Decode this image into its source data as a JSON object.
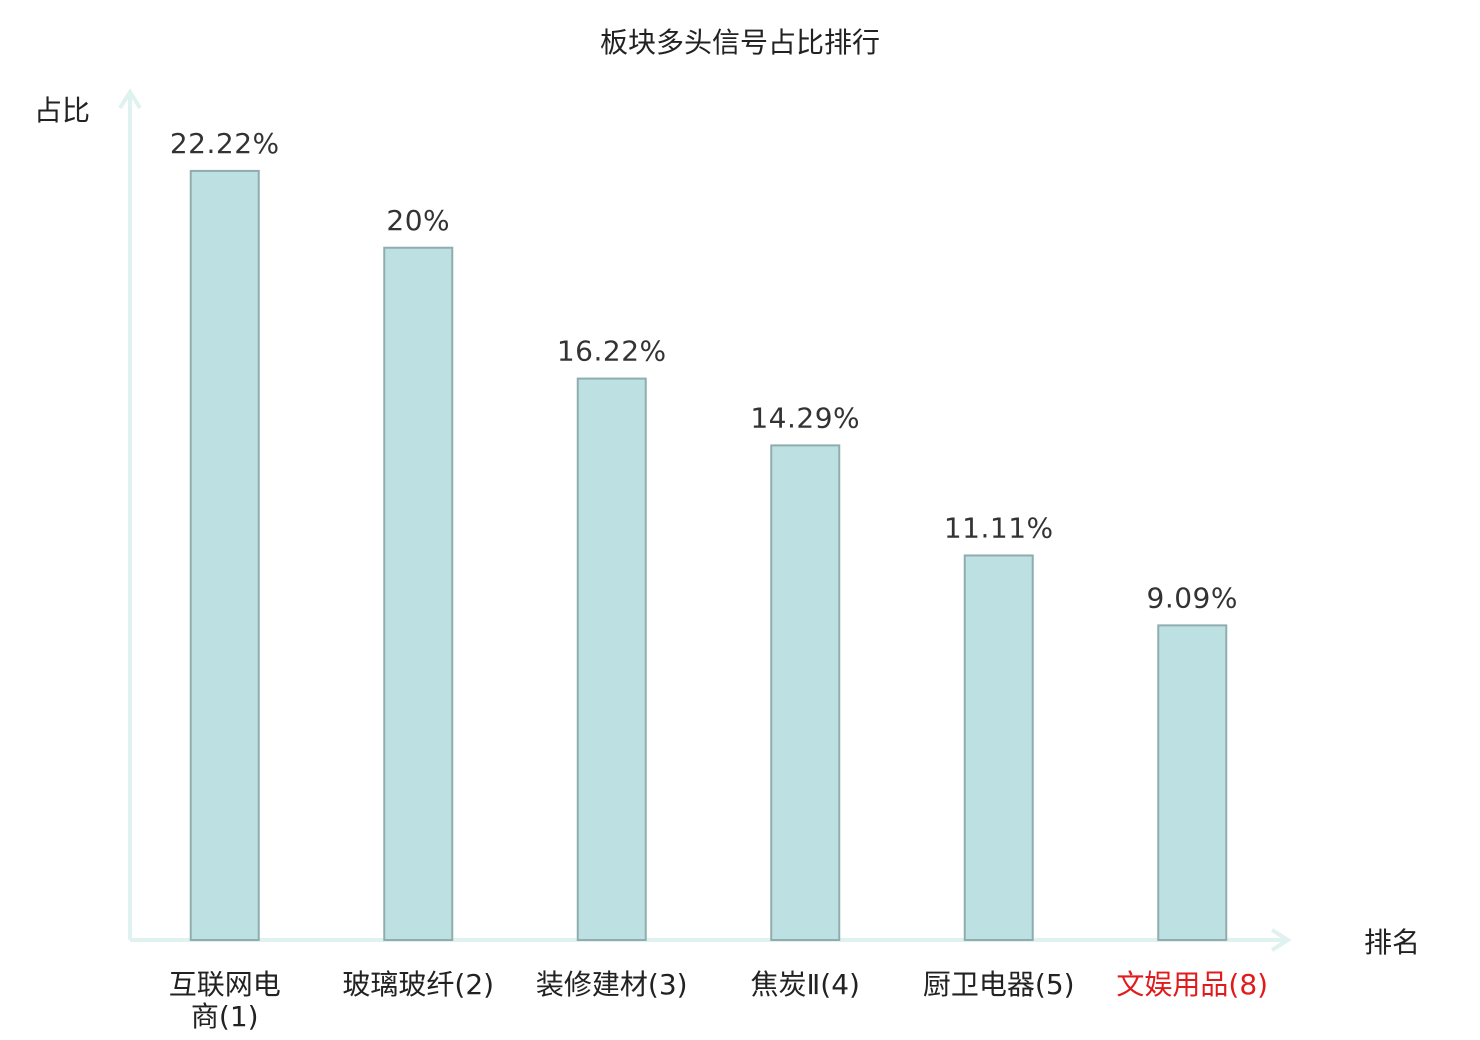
{
  "chart_data": {
    "type": "bar",
    "title": "板块多头信号占比排行",
    "ylabel": "占比",
    "xlabel": "排名",
    "ylim": [
      0,
      24.5
    ],
    "grid": false,
    "categories": [
      {
        "lines": [
          "互联网电",
          "商(1)"
        ],
        "highlight": false
      },
      {
        "lines": [
          "玻璃玻纤(2)"
        ],
        "highlight": false
      },
      {
        "lines": [
          "装修建材(3)"
        ],
        "highlight": false
      },
      {
        "lines": [
          "焦炭Ⅱ(4)"
        ],
        "highlight": false
      },
      {
        "lines": [
          "厨卫电器(5)"
        ],
        "highlight": false
      },
      {
        "lines": [
          "文娱用品(8)"
        ],
        "highlight": true
      }
    ],
    "values": [
      22.22,
      20,
      16.22,
      14.29,
      11.11,
      9.09
    ],
    "value_labels": [
      "22.22%",
      "20%",
      "16.22%",
      "14.29%",
      "11.11%",
      "9.09%"
    ],
    "colors": {
      "bar_fill": "#bde0e2",
      "bar_stroke": "#8fadae",
      "axis": "#dff2ef",
      "label_text": "#222222",
      "highlight_text": "#e11b1b"
    }
  }
}
